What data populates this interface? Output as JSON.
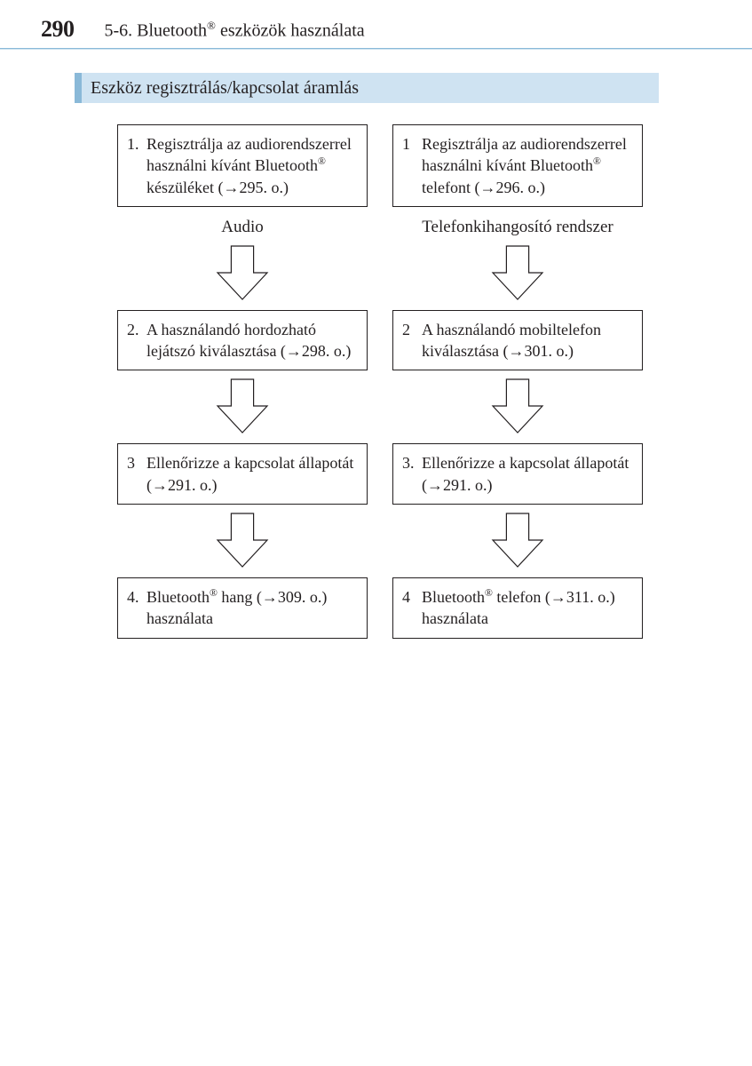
{
  "page_number": "290",
  "chapter_prefix": "5-6. Bluetooth",
  "chapter_suffix": " eszközök használata",
  "section_title": "Eszköz regisztrálás/kapcsolat áramlás",
  "arrow": {
    "width": 60,
    "height": 64,
    "stroke": "#231f20",
    "stroke_width": 1.2,
    "fill": "#ffffff"
  },
  "left": {
    "label": "Audio",
    "steps": [
      {
        "num": "1.",
        "pre": "Regisztrálja az audiorendszerrel használni kívánt Bluetooth",
        "sup": "®",
        "post": " készüléket (→295. o.)"
      },
      {
        "num": "2.",
        "pre": "A használandó hordozható lejátszó kiválasztása (→298. o.)",
        "sup": "",
        "post": ""
      },
      {
        "num": "3",
        "pre": "Ellenőrizze a kapcsolat állapotát (→291. o.)",
        "sup": "",
        "post": ""
      },
      {
        "num": "4.",
        "pre": "Bluetooth",
        "sup": "®",
        "post": " hang (→309. o.) használata"
      }
    ]
  },
  "right": {
    "label": "Telefonkihangosító rendszer",
    "steps": [
      {
        "num": "1",
        "pre": "Regisztrálja az audiorendszerrel használni kívánt Bluetooth",
        "sup": "®",
        "post": " telefont (→296. o.)"
      },
      {
        "num": "2",
        "pre": "A használandó mobiltelefon kiválasztása (→301. o.)",
        "sup": "",
        "post": ""
      },
      {
        "num": "3.",
        "pre": "Ellenőrizze a kapcsolat állapotát (→291. o.)",
        "sup": "",
        "post": ""
      },
      {
        "num": "4",
        "pre": "Bluetooth",
        "sup": "®",
        "post": " telefon (→311. o.) használata"
      }
    ]
  }
}
